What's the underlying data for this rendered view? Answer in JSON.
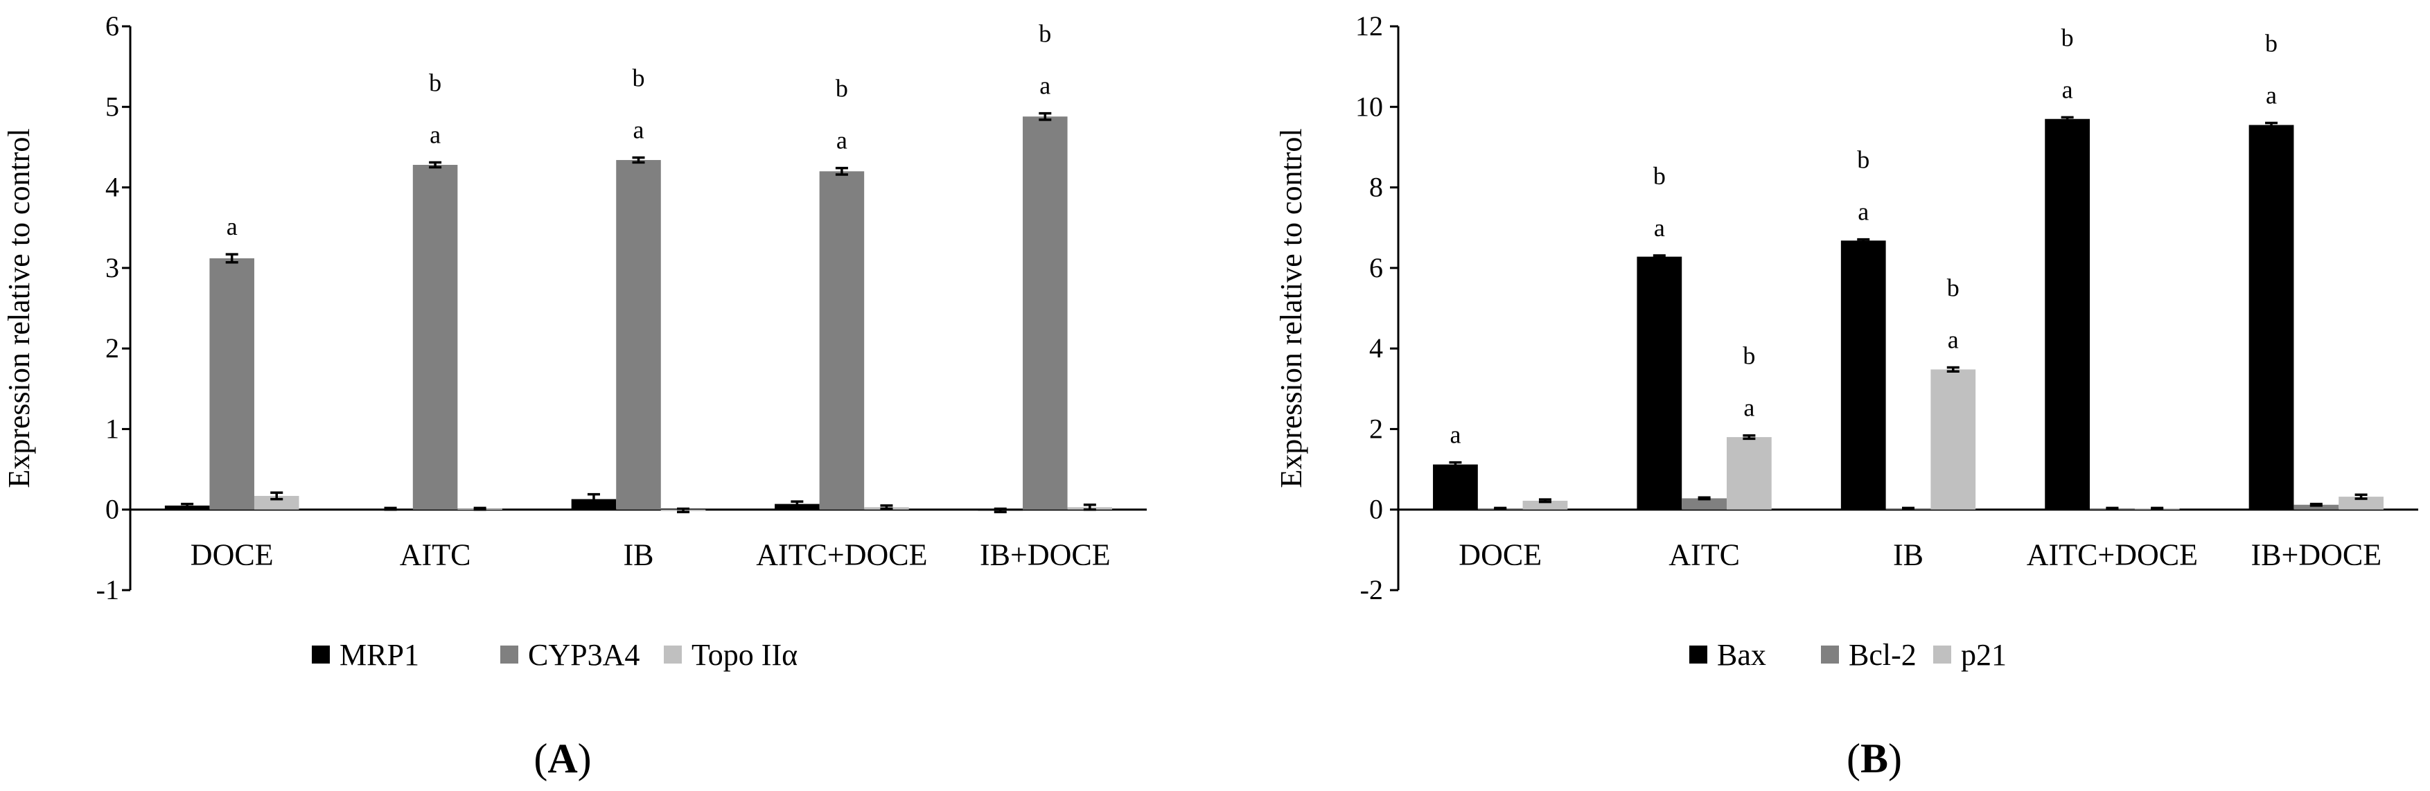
{
  "chart_data": [
    {
      "type": "bar",
      "panel_label": "A",
      "ylabel": "Expression relative to control",
      "ylim": [
        -1,
        6
      ],
      "yticks": [
        -1,
        0,
        1,
        2,
        3,
        4,
        5,
        6
      ],
      "categories": [
        "DOCE",
        "AITC",
        "IB",
        "AITC+DOCE",
        "IB+DOCE"
      ],
      "series": [
        {
          "name": "MRP1",
          "color": "#000000",
          "values": [
            0.05,
            0.01,
            0.13,
            0.07,
            -0.01
          ],
          "errors": [
            0.02,
            0.01,
            0.06,
            0.03,
            0.02
          ]
        },
        {
          "name": "CYP3A4",
          "color": "#808080",
          "values": [
            3.12,
            4.28,
            4.34,
            4.2,
            4.88
          ],
          "errors": [
            0.05,
            0.03,
            0.03,
            0.04,
            0.04
          ]
        },
        {
          "name": "Topo IIα",
          "color": "#c0c0c0",
          "values": [
            0.17,
            0.01,
            -0.01,
            0.03,
            0.03
          ],
          "errors": [
            0.04,
            0.01,
            0.02,
            0.02,
            0.03
          ]
        }
      ],
      "annotations": [
        {
          "category": "DOCE",
          "series": "CYP3A4",
          "labels": [
            "a"
          ]
        },
        {
          "category": "AITC",
          "series": "CYP3A4",
          "labels": [
            "b",
            "a"
          ]
        },
        {
          "category": "IB",
          "series": "CYP3A4",
          "labels": [
            "b",
            "a"
          ]
        },
        {
          "category": "AITC+DOCE",
          "series": "CYP3A4",
          "labels": [
            "b",
            "a"
          ]
        },
        {
          "category": "IB+DOCE",
          "series": "CYP3A4",
          "labels": [
            "b",
            "a"
          ]
        }
      ],
      "legend_position": "bottom",
      "grid": false
    },
    {
      "type": "bar",
      "panel_label": "B",
      "ylabel": "Expression relative to control",
      "ylim": [
        -2,
        12
      ],
      "yticks": [
        -2,
        0,
        2,
        4,
        6,
        8,
        10,
        12
      ],
      "categories": [
        "DOCE",
        "AITC",
        "IB",
        "AITC+DOCE",
        "IB+DOCE"
      ],
      "series": [
        {
          "name": "Bax",
          "color": "#000000",
          "values": [
            1.12,
            6.28,
            6.68,
            9.7,
            9.55
          ],
          "errors": [
            0.05,
            0.03,
            0.03,
            0.04,
            0.05
          ]
        },
        {
          "name": "Bcl-2",
          "color": "#808080",
          "values": [
            0.03,
            0.28,
            0.03,
            0.03,
            0.12
          ],
          "errors": [
            0.01,
            0.02,
            0.01,
            0.01,
            0.02
          ]
        },
        {
          "name": "p21",
          "color": "#c0c0c0",
          "values": [
            0.22,
            1.8,
            3.48,
            0.03,
            0.32
          ],
          "errors": [
            0.03,
            0.04,
            0.05,
            0.01,
            0.05
          ]
        }
      ],
      "annotations": [
        {
          "category": "DOCE",
          "series": "Bax",
          "labels": [
            "a"
          ]
        },
        {
          "category": "AITC",
          "series": "Bax",
          "labels": [
            "b",
            "a"
          ]
        },
        {
          "category": "AITC",
          "series": "p21",
          "labels": [
            "b",
            "a"
          ]
        },
        {
          "category": "IB",
          "series": "Bax",
          "labels": [
            "b",
            "a"
          ]
        },
        {
          "category": "IB",
          "series": "p21",
          "labels": [
            "b",
            "a"
          ]
        },
        {
          "category": "AITC+DOCE",
          "series": "Bax",
          "labels": [
            "b",
            "a"
          ]
        },
        {
          "category": "IB+DOCE",
          "series": "Bax",
          "labels": [
            "b",
            "a"
          ]
        }
      ],
      "legend_position": "bottom",
      "grid": false
    }
  ]
}
